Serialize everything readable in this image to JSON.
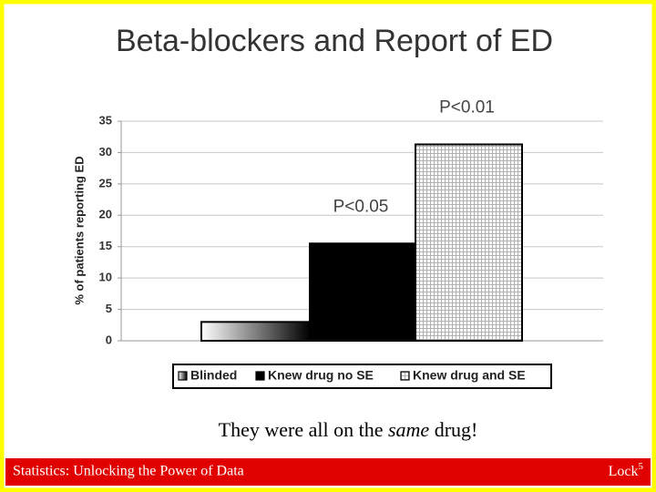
{
  "chart_data": {
    "type": "bar",
    "title": "Beta-blockers and Report of ED",
    "y_label": "% of patients reporting ED",
    "categories": [
      "Blinded",
      "Knew drug no SE",
      "Knew drug and SE"
    ],
    "values": [
      3,
      15.5,
      31.3
    ],
    "bar_styles": [
      "gradient",
      "solid",
      "checkered"
    ],
    "ylim": [
      0,
      35
    ],
    "yticks": [
      0,
      5,
      10,
      15,
      20,
      25,
      30,
      35
    ],
    "grid": true,
    "legend": "bottom",
    "annotations": [
      {
        "text": "P<0.05",
        "category": "Knew drug no SE"
      },
      {
        "text": "P<0.01",
        "category": "Knew drug and SE"
      }
    ]
  },
  "caption": {
    "before": "They were all on the ",
    "emphasis": "same",
    "after": " drug!"
  },
  "footer": {
    "left": "Statistics: Unlocking the Power of Data",
    "right": "Lock",
    "right_sup": "5"
  }
}
